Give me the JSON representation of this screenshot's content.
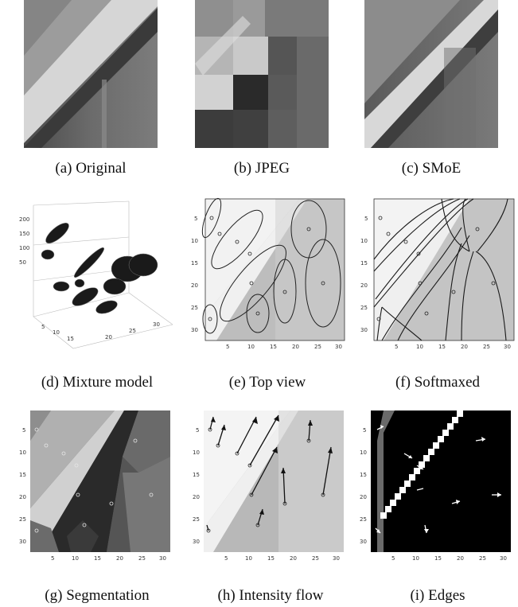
{
  "figure": {
    "captions": {
      "a": "(a) Original",
      "b": "(b) JPEG",
      "c": "(c) SMoE",
      "d": "(d) Mixture model",
      "e": "(e) Top view",
      "f": "(f) Softmaxed",
      "g": "(g) Segmentation",
      "h": "(h) Intensity flow",
      "i": "(i) Edges"
    },
    "ticks": {
      "y": [
        "5",
        "10",
        "15",
        "20",
        "25",
        "30"
      ],
      "x": [
        "5",
        "10",
        "15",
        "20",
        "25",
        "30"
      ]
    },
    "colors": {
      "dark": "#1f1f1f",
      "light": "#e8e8e8",
      "mid": "#7a7a7a",
      "contour": "#222222"
    }
  }
}
